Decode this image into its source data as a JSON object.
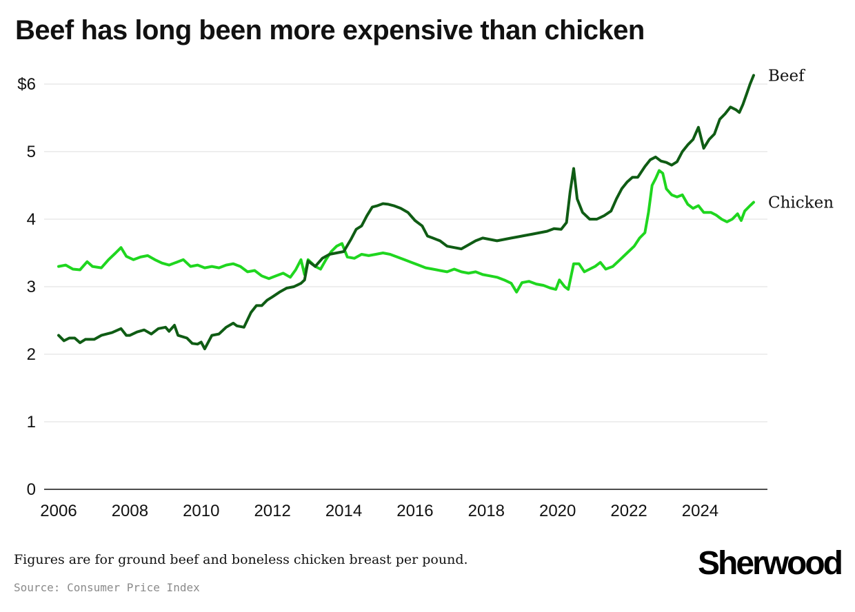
{
  "chart_data": {
    "type": "line",
    "title": "Beef has long been more expensive than chicken",
    "xlabel": "",
    "ylabel": "",
    "x_range": [
      2006,
      2025.5
    ],
    "ylim": [
      0,
      6.2
    ],
    "yticks": [
      0,
      1,
      2,
      3,
      4,
      5,
      6
    ],
    "ytick_labels": [
      "0",
      "1",
      "2",
      "3",
      "4",
      "5",
      "$6"
    ],
    "xticks": [
      2006,
      2008,
      2010,
      2012,
      2014,
      2016,
      2018,
      2020,
      2022,
      2024
    ],
    "xtick_labels": [
      "2006",
      "2008",
      "2010",
      "2012",
      "2014",
      "2016",
      "2018",
      "2020",
      "2022",
      "2024"
    ],
    "grid": "horizontal",
    "series": [
      {
        "name": "Beef",
        "color": "#0f5c14",
        "points": [
          [
            2006.0,
            2.28
          ],
          [
            2006.15,
            2.2
          ],
          [
            2006.3,
            2.24
          ],
          [
            2006.45,
            2.24
          ],
          [
            2006.6,
            2.17
          ],
          [
            2006.75,
            2.22
          ],
          [
            2007.0,
            2.22
          ],
          [
            2007.2,
            2.28
          ],
          [
            2007.5,
            2.32
          ],
          [
            2007.75,
            2.38
          ],
          [
            2007.9,
            2.28
          ],
          [
            2008.0,
            2.28
          ],
          [
            2008.2,
            2.33
          ],
          [
            2008.4,
            2.36
          ],
          [
            2008.6,
            2.3
          ],
          [
            2008.8,
            2.38
          ],
          [
            2009.0,
            2.4
          ],
          [
            2009.1,
            2.34
          ],
          [
            2009.25,
            2.43
          ],
          [
            2009.35,
            2.28
          ],
          [
            2009.6,
            2.24
          ],
          [
            2009.75,
            2.16
          ],
          [
            2009.9,
            2.15
          ],
          [
            2010.0,
            2.18
          ],
          [
            2010.1,
            2.08
          ],
          [
            2010.3,
            2.28
          ],
          [
            2010.5,
            2.3
          ],
          [
            2010.7,
            2.4
          ],
          [
            2010.9,
            2.46
          ],
          [
            2011.0,
            2.42
          ],
          [
            2011.2,
            2.4
          ],
          [
            2011.4,
            2.62
          ],
          [
            2011.55,
            2.72
          ],
          [
            2011.7,
            2.72
          ],
          [
            2011.85,
            2.8
          ],
          [
            2012.0,
            2.85
          ],
          [
            2012.2,
            2.92
          ],
          [
            2012.4,
            2.98
          ],
          [
            2012.6,
            3.0
          ],
          [
            2012.8,
            3.05
          ],
          [
            2012.9,
            3.1
          ],
          [
            2013.0,
            3.38
          ],
          [
            2013.2,
            3.3
          ],
          [
            2013.4,
            3.42
          ],
          [
            2013.6,
            3.48
          ],
          [
            2013.8,
            3.5
          ],
          [
            2014.0,
            3.52
          ],
          [
            2014.2,
            3.7
          ],
          [
            2014.35,
            3.85
          ],
          [
            2014.5,
            3.9
          ],
          [
            2014.65,
            4.05
          ],
          [
            2014.8,
            4.18
          ],
          [
            2014.95,
            4.2
          ],
          [
            2015.1,
            4.23
          ],
          [
            2015.25,
            4.22
          ],
          [
            2015.4,
            4.2
          ],
          [
            2015.6,
            4.16
          ],
          [
            2015.8,
            4.1
          ],
          [
            2016.0,
            3.98
          ],
          [
            2016.2,
            3.9
          ],
          [
            2016.35,
            3.75
          ],
          [
            2016.5,
            3.72
          ],
          [
            2016.7,
            3.68
          ],
          [
            2016.9,
            3.6
          ],
          [
            2017.1,
            3.58
          ],
          [
            2017.3,
            3.56
          ],
          [
            2017.5,
            3.62
          ],
          [
            2017.7,
            3.68
          ],
          [
            2017.9,
            3.72
          ],
          [
            2018.1,
            3.7
          ],
          [
            2018.3,
            3.68
          ],
          [
            2018.5,
            3.7
          ],
          [
            2018.7,
            3.72
          ],
          [
            2018.9,
            3.74
          ],
          [
            2019.1,
            3.76
          ],
          [
            2019.3,
            3.78
          ],
          [
            2019.5,
            3.8
          ],
          [
            2019.7,
            3.82
          ],
          [
            2019.9,
            3.86
          ],
          [
            2020.1,
            3.85
          ],
          [
            2020.25,
            3.95
          ],
          [
            2020.35,
            4.4
          ],
          [
            2020.45,
            4.75
          ],
          [
            2020.55,
            4.3
          ],
          [
            2020.7,
            4.1
          ],
          [
            2020.9,
            4.0
          ],
          [
            2021.1,
            4.0
          ],
          [
            2021.3,
            4.05
          ],
          [
            2021.5,
            4.12
          ],
          [
            2021.65,
            4.3
          ],
          [
            2021.8,
            4.45
          ],
          [
            2021.95,
            4.55
          ],
          [
            2022.1,
            4.62
          ],
          [
            2022.25,
            4.62
          ],
          [
            2022.45,
            4.78
          ],
          [
            2022.6,
            4.88
          ],
          [
            2022.75,
            4.92
          ],
          [
            2022.9,
            4.86
          ],
          [
            2023.05,
            4.84
          ],
          [
            2023.2,
            4.8
          ],
          [
            2023.35,
            4.85
          ],
          [
            2023.5,
            5.0
          ],
          [
            2023.65,
            5.1
          ],
          [
            2023.8,
            5.18
          ],
          [
            2023.95,
            5.36
          ],
          [
            2024.1,
            5.05
          ],
          [
            2024.25,
            5.18
          ],
          [
            2024.4,
            5.26
          ],
          [
            2024.55,
            5.48
          ],
          [
            2024.7,
            5.56
          ],
          [
            2024.85,
            5.66
          ],
          [
            2025.0,
            5.62
          ],
          [
            2025.1,
            5.58
          ],
          [
            2025.2,
            5.7
          ],
          [
            2025.3,
            5.85
          ],
          [
            2025.4,
            6.0
          ],
          [
            2025.5,
            6.13
          ]
        ]
      },
      {
        "name": "Chicken",
        "color": "#1fd61f",
        "points": [
          [
            2006.0,
            3.3
          ],
          [
            2006.2,
            3.32
          ],
          [
            2006.4,
            3.26
          ],
          [
            2006.6,
            3.25
          ],
          [
            2006.8,
            3.37
          ],
          [
            2006.95,
            3.3
          ],
          [
            2007.2,
            3.28
          ],
          [
            2007.4,
            3.4
          ],
          [
            2007.6,
            3.5
          ],
          [
            2007.75,
            3.58
          ],
          [
            2007.9,
            3.45
          ],
          [
            2008.1,
            3.4
          ],
          [
            2008.3,
            3.44
          ],
          [
            2008.5,
            3.46
          ],
          [
            2008.7,
            3.4
          ],
          [
            2008.9,
            3.35
          ],
          [
            2009.1,
            3.32
          ],
          [
            2009.3,
            3.36
          ],
          [
            2009.5,
            3.4
          ],
          [
            2009.7,
            3.3
          ],
          [
            2009.9,
            3.32
          ],
          [
            2010.1,
            3.28
          ],
          [
            2010.3,
            3.3
          ],
          [
            2010.5,
            3.28
          ],
          [
            2010.7,
            3.32
          ],
          [
            2010.9,
            3.34
          ],
          [
            2011.1,
            3.3
          ],
          [
            2011.3,
            3.22
          ],
          [
            2011.5,
            3.24
          ],
          [
            2011.7,
            3.16
          ],
          [
            2011.9,
            3.12
          ],
          [
            2012.1,
            3.16
          ],
          [
            2012.3,
            3.2
          ],
          [
            2012.5,
            3.14
          ],
          [
            2012.65,
            3.25
          ],
          [
            2012.8,
            3.4
          ],
          [
            2012.9,
            3.18
          ],
          [
            2013.0,
            3.4
          ],
          [
            2013.2,
            3.3
          ],
          [
            2013.35,
            3.26
          ],
          [
            2013.5,
            3.4
          ],
          [
            2013.65,
            3.52
          ],
          [
            2013.8,
            3.6
          ],
          [
            2013.95,
            3.64
          ],
          [
            2014.1,
            3.44
          ],
          [
            2014.3,
            3.42
          ],
          [
            2014.5,
            3.48
          ],
          [
            2014.7,
            3.46
          ],
          [
            2014.9,
            3.48
          ],
          [
            2015.1,
            3.5
          ],
          [
            2015.3,
            3.48
          ],
          [
            2015.5,
            3.44
          ],
          [
            2015.7,
            3.4
          ],
          [
            2015.9,
            3.36
          ],
          [
            2016.1,
            3.32
          ],
          [
            2016.3,
            3.28
          ],
          [
            2016.5,
            3.26
          ],
          [
            2016.7,
            3.24
          ],
          [
            2016.9,
            3.22
          ],
          [
            2017.1,
            3.26
          ],
          [
            2017.3,
            3.22
          ],
          [
            2017.5,
            3.2
          ],
          [
            2017.7,
            3.22
          ],
          [
            2017.9,
            3.18
          ],
          [
            2018.1,
            3.16
          ],
          [
            2018.3,
            3.14
          ],
          [
            2018.5,
            3.1
          ],
          [
            2018.7,
            3.05
          ],
          [
            2018.85,
            2.92
          ],
          [
            2019.0,
            3.06
          ],
          [
            2019.2,
            3.08
          ],
          [
            2019.4,
            3.04
          ],
          [
            2019.6,
            3.02
          ],
          [
            2019.8,
            2.98
          ],
          [
            2019.95,
            2.96
          ],
          [
            2020.05,
            3.1
          ],
          [
            2020.2,
            3.0
          ],
          [
            2020.3,
            2.96
          ],
          [
            2020.45,
            3.34
          ],
          [
            2020.6,
            3.34
          ],
          [
            2020.75,
            3.22
          ],
          [
            2020.9,
            3.26
          ],
          [
            2021.05,
            3.3
          ],
          [
            2021.2,
            3.36
          ],
          [
            2021.35,
            3.26
          ],
          [
            2021.55,
            3.3
          ],
          [
            2021.75,
            3.4
          ],
          [
            2021.95,
            3.5
          ],
          [
            2022.15,
            3.6
          ],
          [
            2022.3,
            3.72
          ],
          [
            2022.45,
            3.8
          ],
          [
            2022.55,
            4.1
          ],
          [
            2022.65,
            4.5
          ],
          [
            2022.75,
            4.6
          ],
          [
            2022.85,
            4.72
          ],
          [
            2022.95,
            4.68
          ],
          [
            2023.05,
            4.45
          ],
          [
            2023.2,
            4.36
          ],
          [
            2023.35,
            4.33
          ],
          [
            2023.5,
            4.36
          ],
          [
            2023.65,
            4.22
          ],
          [
            2023.8,
            4.16
          ],
          [
            2023.95,
            4.2
          ],
          [
            2024.1,
            4.1
          ],
          [
            2024.3,
            4.1
          ],
          [
            2024.45,
            4.06
          ],
          [
            2024.6,
            4.0
          ],
          [
            2024.75,
            3.96
          ],
          [
            2024.9,
            4.0
          ],
          [
            2025.05,
            4.08
          ],
          [
            2025.15,
            3.98
          ],
          [
            2025.25,
            4.12
          ],
          [
            2025.4,
            4.2
          ],
          [
            2025.5,
            4.25
          ]
        ]
      }
    ]
  },
  "footer": {
    "note": "Figures are for ground beef and boneless chicken breast per pound.",
    "source": "Source: Consumer Price Index",
    "brand": "Sherwood"
  }
}
